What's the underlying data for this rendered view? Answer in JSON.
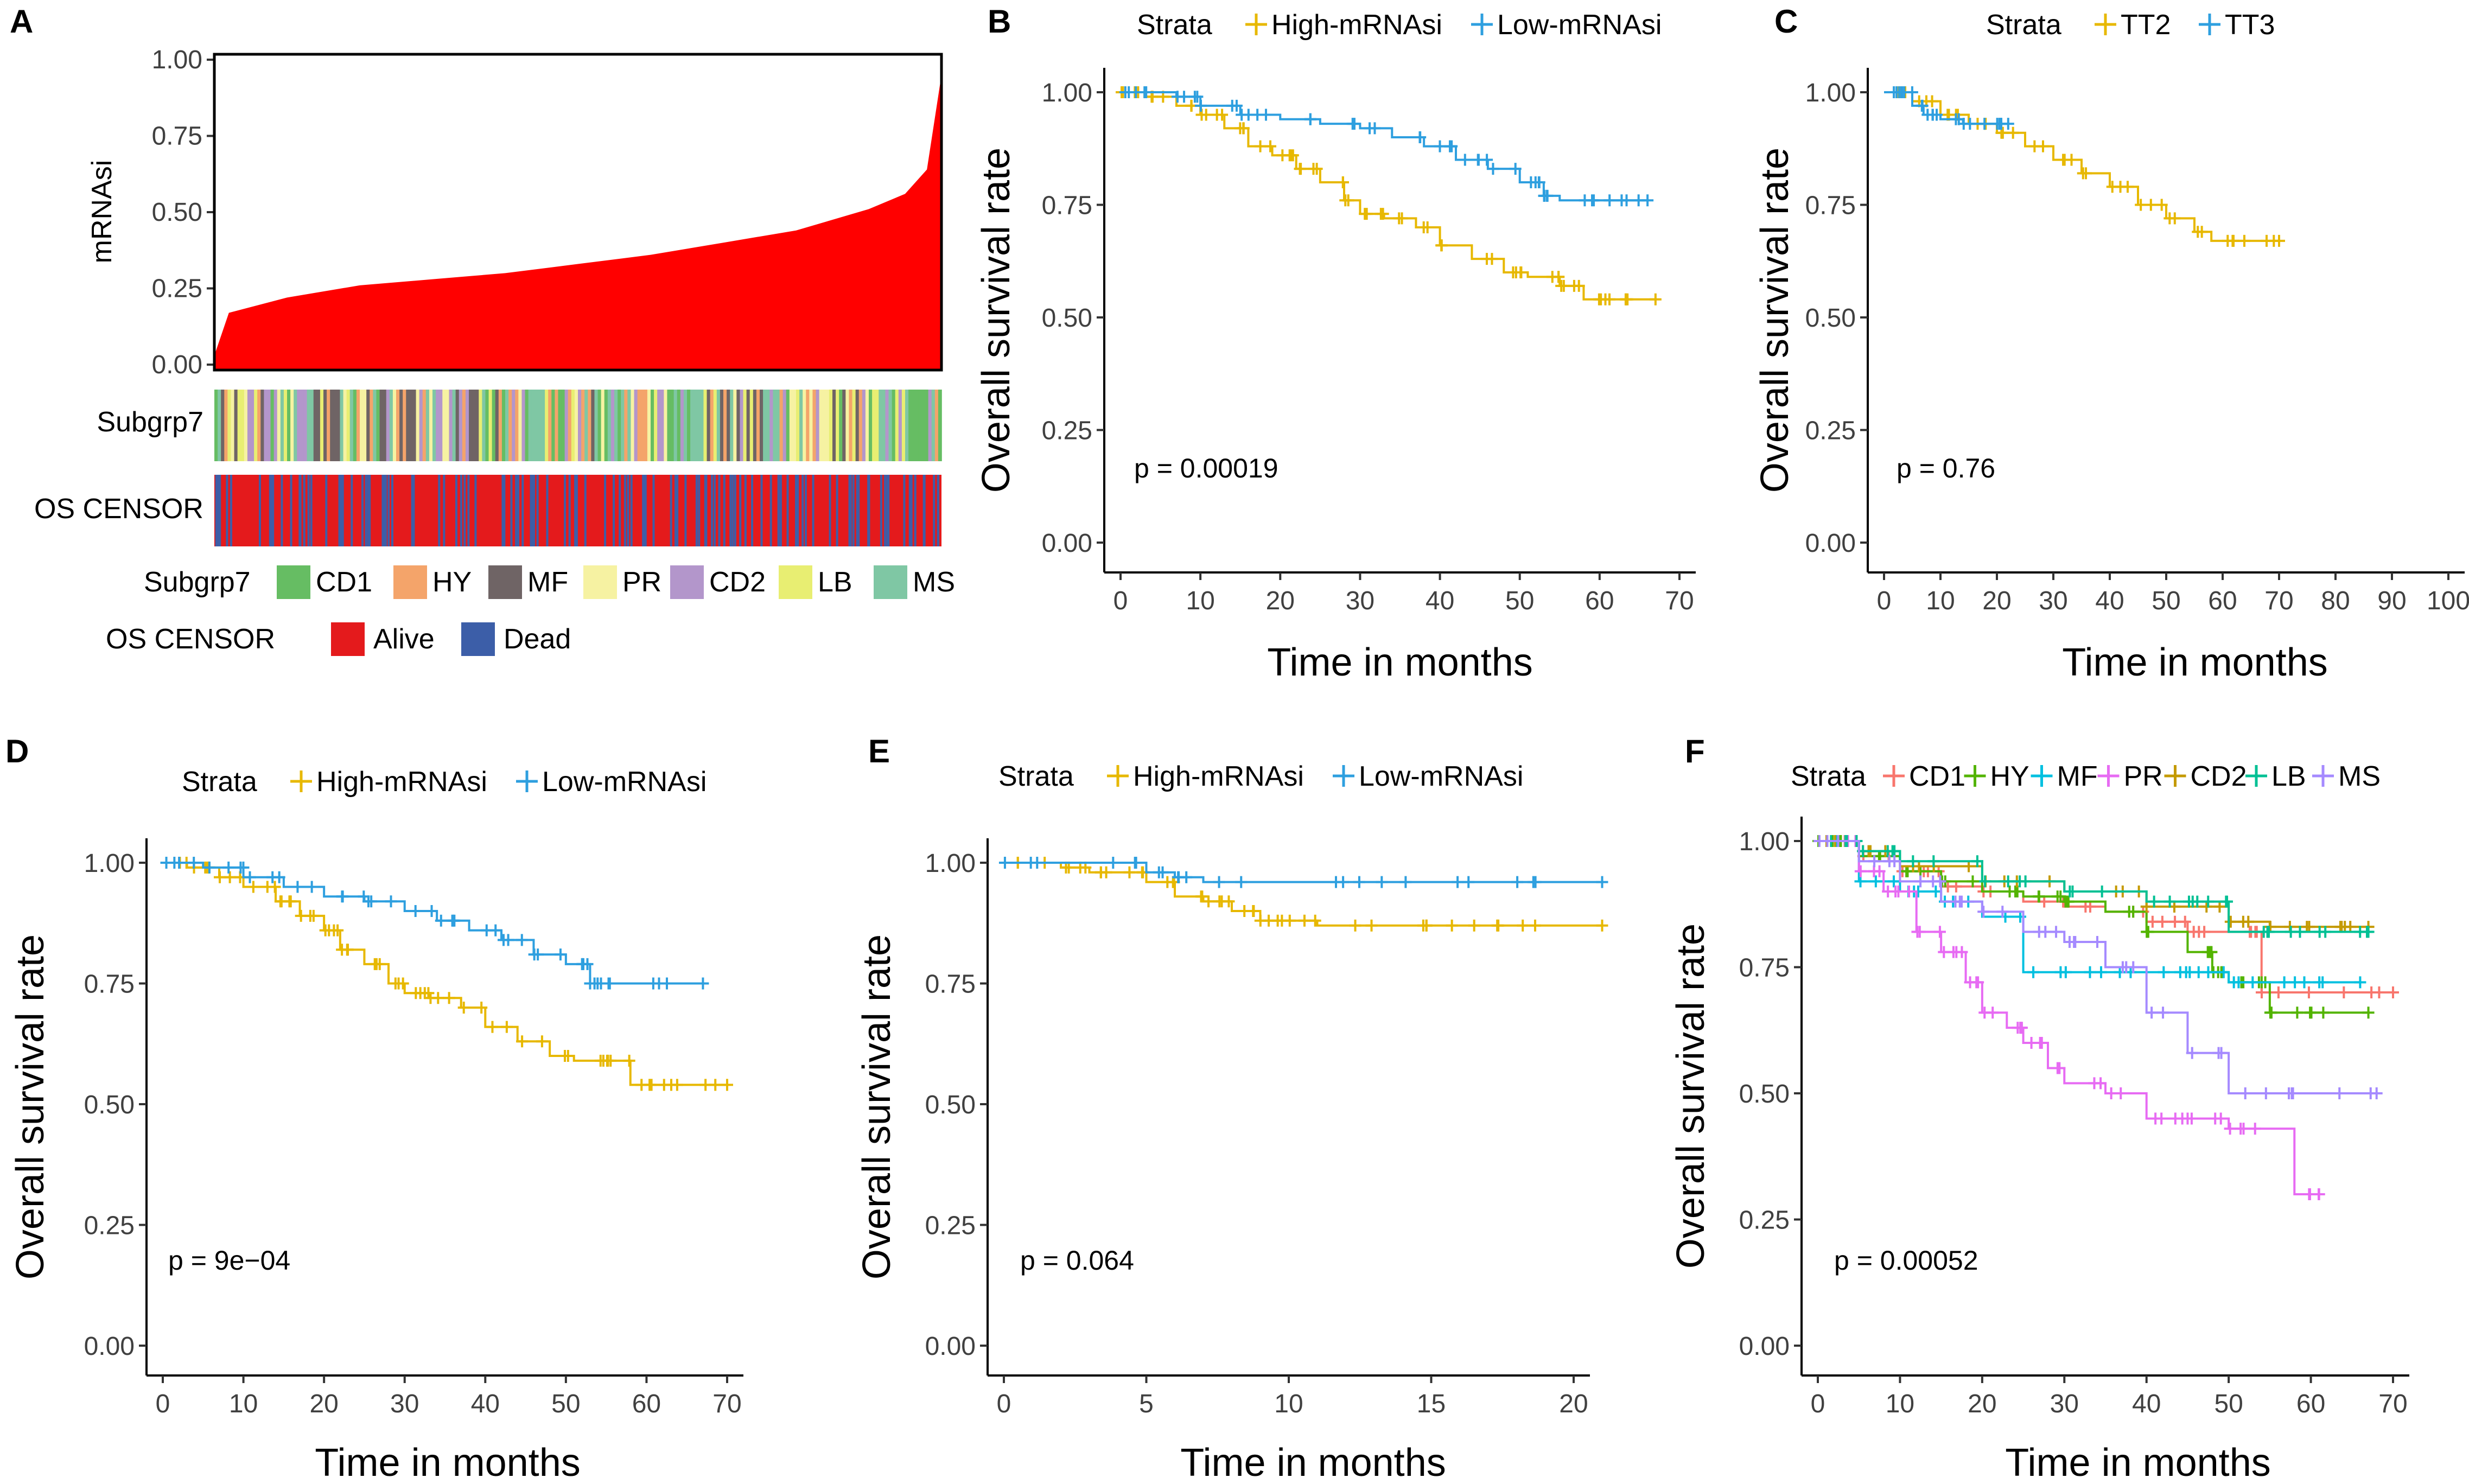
{
  "chart_data": [
    {
      "panel": "A",
      "type": "bar",
      "ylabel": "mRNAsi",
      "ylim": [
        0,
        1
      ],
      "yticks": [
        "0.00",
        "0.25",
        "0.50",
        "0.75",
        "1.00"
      ],
      "description_series": {
        "name": "mRNAsi sorted ascending",
        "quantiles": [
          0,
          0.02,
          0.1,
          0.2,
          0.3,
          0.4,
          0.5,
          0.6,
          0.7,
          0.8,
          0.9,
          0.95,
          0.98,
          1.0
        ],
        "values": [
          0.03,
          0.17,
          0.22,
          0.26,
          0.28,
          0.3,
          0.33,
          0.36,
          0.4,
          0.44,
          0.51,
          0.56,
          0.64,
          0.95
        ]
      },
      "tracks": [
        {
          "label": "Subgrp7"
        },
        {
          "label": "OS CENSOR"
        }
      ],
      "legend": [
        {
          "title": "Subgrp7",
          "items": [
            {
              "label": "CD1",
              "color": "#66BD63"
            },
            {
              "label": "HY",
              "color": "#F4A46A"
            },
            {
              "label": "MF",
              "color": "#6F6465"
            },
            {
              "label": "PR",
              "color": "#F6F2A2"
            },
            {
              "label": "CD2",
              "color": "#B396CB"
            },
            {
              "label": "LB",
              "color": "#E8EE72"
            },
            {
              "label": "MS",
              "color": "#7FC7A4"
            }
          ]
        },
        {
          "title": "OS CENSOR",
          "items": [
            {
              "label": "Alive",
              "color": "#E41A1C"
            },
            {
              "label": "Dead",
              "color": "#3C5EA8"
            }
          ]
        }
      ]
    },
    {
      "panel": "B",
      "type": "line",
      "legend_title": "Strata",
      "xlabel": "Time in months",
      "ylabel": "Overall survival rate",
      "xlim": [
        0,
        70
      ],
      "ylim": [
        0,
        1
      ],
      "xticks": [
        "0",
        "10",
        "20",
        "30",
        "40",
        "50",
        "60",
        "70"
      ],
      "yticks": [
        "0.00",
        "0.25",
        "0.50",
        "0.75",
        "1.00"
      ],
      "pvalue": "p = 0.00019",
      "series": [
        {
          "name": "High-mRNAsi",
          "color": "#E7B800",
          "x": [
            0,
            3,
            7,
            10,
            13,
            16,
            19,
            22,
            25,
            28,
            30,
            33,
            37,
            40,
            44,
            48,
            51,
            55,
            58,
            63,
            67
          ],
          "y": [
            1.0,
            0.99,
            0.97,
            0.95,
            0.92,
            0.88,
            0.86,
            0.83,
            0.8,
            0.76,
            0.73,
            0.72,
            0.7,
            0.66,
            0.63,
            0.6,
            0.59,
            0.57,
            0.54,
            0.54,
            0.54
          ]
        },
        {
          "name": "Low-mRNAsi",
          "color": "#2E9FDF",
          "x": [
            0,
            3,
            7,
            10,
            15,
            20,
            25,
            30,
            34,
            38,
            42,
            46,
            50,
            53,
            55,
            60,
            66
          ],
          "y": [
            1.0,
            1.0,
            0.99,
            0.97,
            0.95,
            0.94,
            0.93,
            0.92,
            0.9,
            0.88,
            0.85,
            0.83,
            0.8,
            0.77,
            0.76,
            0.76,
            0.76
          ]
        }
      ]
    },
    {
      "panel": "C",
      "type": "line",
      "legend_title": "Strata",
      "xlabel": "Time in months",
      "ylabel": "Overall survival rate",
      "xlim": [
        0,
        100
      ],
      "ylim": [
        0,
        1
      ],
      "xticks": [
        "0",
        "10",
        "20",
        "30",
        "40",
        "50",
        "60",
        "70",
        "80",
        "90",
        "100"
      ],
      "yticks": [
        "0.00",
        "0.25",
        "0.50",
        "0.75",
        "1.00"
      ],
      "pvalue": "p = 0.76",
      "series": [
        {
          "name": "TT2",
          "color": "#E7B800",
          "x": [
            0,
            5,
            10,
            15,
            20,
            25,
            30,
            35,
            40,
            45,
            50,
            55,
            58,
            63,
            70
          ],
          "y": [
            1.0,
            0.98,
            0.95,
            0.93,
            0.91,
            0.88,
            0.85,
            0.82,
            0.79,
            0.75,
            0.72,
            0.69,
            0.67,
            0.67,
            0.67
          ]
        },
        {
          "name": "TT3",
          "color": "#2E9FDF",
          "x": [
            0,
            3,
            5,
            7,
            10,
            14,
            18,
            22
          ],
          "y": [
            1.0,
            1.0,
            0.97,
            0.95,
            0.94,
            0.93,
            0.93,
            0.93
          ]
        }
      ]
    },
    {
      "panel": "D",
      "type": "line",
      "legend_title": "Strata",
      "xlabel": "Time in months",
      "ylabel": "Overall survival rate",
      "xlim": [
        0,
        70
      ],
      "ylim": [
        0,
        1
      ],
      "xticks": [
        "0",
        "10",
        "20",
        "30",
        "40",
        "50",
        "60",
        "70"
      ],
      "yticks": [
        "0.00",
        "0.25",
        "0.50",
        "0.75",
        "1.00"
      ],
      "pvalue": "p = 9e−04",
      "series": [
        {
          "name": "High-mRNAsi",
          "color": "#E7B800",
          "x": [
            0,
            3,
            7,
            10,
            14,
            17,
            20,
            22,
            25,
            28,
            30,
            33,
            37,
            40,
            44,
            48,
            51,
            55,
            58,
            63,
            70
          ],
          "y": [
            1.0,
            0.99,
            0.97,
            0.95,
            0.92,
            0.89,
            0.86,
            0.82,
            0.79,
            0.75,
            0.73,
            0.72,
            0.7,
            0.66,
            0.63,
            0.6,
            0.59,
            0.59,
            0.54,
            0.54,
            0.54
          ]
        },
        {
          "name": "Low-mRNAsi",
          "color": "#2E9FDF",
          "x": [
            0,
            5,
            10,
            15,
            20,
            25,
            30,
            34,
            38,
            42,
            46,
            50,
            53,
            55,
            60,
            67
          ],
          "y": [
            1.0,
            0.99,
            0.97,
            0.95,
            0.93,
            0.92,
            0.9,
            0.88,
            0.86,
            0.84,
            0.81,
            0.79,
            0.75,
            0.75,
            0.75,
            0.75
          ]
        }
      ]
    },
    {
      "panel": "E",
      "type": "line",
      "legend_title": "Strata",
      "xlabel": "Time in months",
      "ylabel": "Overall survival rate",
      "xlim": [
        0,
        20
      ],
      "ylim": [
        0,
        1
      ],
      "xticks": [
        "0",
        "5",
        "10",
        "15",
        "20"
      ],
      "yticks": [
        "0.00",
        "0.25",
        "0.50",
        "0.75",
        "1.00"
      ],
      "pvalue": "p = 0.064",
      "series": [
        {
          "name": "High-mRNAsi",
          "color": "#E7B800",
          "x": [
            0,
            2,
            3,
            4,
            5,
            6,
            7,
            8,
            9,
            10,
            11,
            13,
            15,
            17,
            21
          ],
          "y": [
            1.0,
            0.99,
            0.98,
            0.98,
            0.96,
            0.93,
            0.92,
            0.9,
            0.88,
            0.88,
            0.87,
            0.87,
            0.87,
            0.87,
            0.87
          ]
        },
        {
          "name": "Low-mRNAsi",
          "color": "#2E9FDF",
          "x": [
            0,
            3,
            5,
            6,
            7,
            9,
            12,
            15,
            18,
            21
          ],
          "y": [
            1.0,
            1.0,
            0.98,
            0.97,
            0.96,
            0.96,
            0.96,
            0.96,
            0.96,
            0.96
          ]
        }
      ]
    },
    {
      "panel": "F",
      "type": "line",
      "legend_title": "Strata",
      "xlabel": "Time in months",
      "ylabel": "Overall survival rate",
      "xlim": [
        0,
        70
      ],
      "ylim": [
        0,
        1
      ],
      "xticks": [
        "0",
        "10",
        "20",
        "30",
        "40",
        "50",
        "60",
        "70"
      ],
      "yticks": [
        "0.00",
        "0.25",
        "0.50",
        "0.75",
        "1.00"
      ],
      "pvalue": "p = 0.00052",
      "series": [
        {
          "name": "CD1",
          "color": "#F8766D",
          "x": [
            0,
            5,
            10,
            15,
            20,
            25,
            30,
            35,
            40,
            45,
            50,
            54,
            60,
            70
          ],
          "y": [
            1.0,
            0.97,
            0.94,
            0.91,
            0.9,
            0.88,
            0.87,
            0.86,
            0.84,
            0.82,
            0.82,
            0.7,
            0.7,
            0.7
          ]
        },
        {
          "name": "HY",
          "color": "#53B400",
          "x": [
            0,
            5,
            10,
            15,
            20,
            25,
            30,
            35,
            40,
            45,
            48,
            50,
            53,
            55,
            60,
            67
          ],
          "y": [
            1.0,
            0.97,
            0.94,
            0.92,
            0.9,
            0.89,
            0.88,
            0.86,
            0.82,
            0.78,
            0.74,
            0.72,
            0.72,
            0.66,
            0.66,
            0.66
          ]
        },
        {
          "name": "MF",
          "color": "#00C0E0",
          "x": [
            0,
            5,
            10,
            15,
            20,
            25,
            30,
            35,
            40,
            45,
            50,
            55,
            60,
            66
          ],
          "y": [
            1.0,
            0.92,
            0.9,
            0.88,
            0.85,
            0.74,
            0.74,
            0.74,
            0.74,
            0.74,
            0.72,
            0.72,
            0.72,
            0.72
          ]
        },
        {
          "name": "PR",
          "color": "#E76BF3",
          "x": [
            0,
            5,
            8,
            12,
            15,
            18,
            20,
            23,
            25,
            28,
            30,
            35,
            40,
            45,
            50,
            58,
            61
          ],
          "y": [
            1.0,
            0.94,
            0.9,
            0.82,
            0.78,
            0.72,
            0.66,
            0.63,
            0.6,
            0.55,
            0.52,
            0.5,
            0.45,
            0.45,
            0.43,
            0.3,
            0.3
          ]
        },
        {
          "name": "CD2",
          "color": "#C49A00",
          "x": [
            0,
            5,
            10,
            20,
            30,
            40,
            50,
            55,
            60,
            67
          ],
          "y": [
            1.0,
            0.98,
            0.95,
            0.92,
            0.9,
            0.87,
            0.84,
            0.83,
            0.83,
            0.83
          ]
        },
        {
          "name": "LB",
          "color": "#00C094",
          "x": [
            0,
            5,
            10,
            20,
            30,
            40,
            45,
            48,
            50,
            55,
            60,
            67
          ],
          "y": [
            1.0,
            0.98,
            0.96,
            0.92,
            0.9,
            0.88,
            0.88,
            0.88,
            0.82,
            0.82,
            0.82,
            0.82
          ]
        },
        {
          "name": "MS",
          "color": "#A58AFF",
          "x": [
            0,
            5,
            10,
            15,
            20,
            25,
            30,
            35,
            40,
            45,
            50,
            55,
            60,
            68
          ],
          "y": [
            1.0,
            0.96,
            0.92,
            0.88,
            0.86,
            0.82,
            0.8,
            0.75,
            0.66,
            0.58,
            0.5,
            0.5,
            0.5,
            0.5
          ]
        }
      ]
    }
  ]
}
